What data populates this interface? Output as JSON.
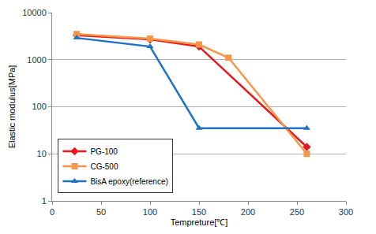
{
  "chart_data": {
    "type": "line",
    "x_label": "Tempreture[℃]",
    "y_label": "Elastic modulus[MPa]",
    "log": "y",
    "grid": true,
    "legend": "lower left",
    "xlim": [
      0,
      300
    ],
    "xticks": [
      0,
      50,
      100,
      150,
      200,
      250,
      300
    ],
    "ylim": [
      1,
      10000
    ],
    "yticks": [
      1,
      10,
      100,
      1000,
      10000
    ],
    "series": [
      {
        "name": "PG-100",
        "color": "#e8191c",
        "marker": "diamond",
        "line_style": "solid",
        "x": [
          25,
          100,
          150,
          260
        ],
        "values": [
          3300,
          2700,
          1900,
          14
        ]
      },
      {
        "name": "CG-500",
        "color": "#f7964a",
        "marker": "square",
        "line_style": "solid",
        "x": [
          25,
          100,
          150,
          180,
          260
        ],
        "values": [
          3500,
          2800,
          2100,
          1100,
          10
        ]
      },
      {
        "name": "BisA epoxy(reference)",
        "color": "#1f73c4",
        "marker": "triangle",
        "line_style": "solid",
        "x": [
          25,
          100,
          150,
          260
        ],
        "values": [
          2900,
          1900,
          35,
          35
        ]
      }
    ]
  }
}
